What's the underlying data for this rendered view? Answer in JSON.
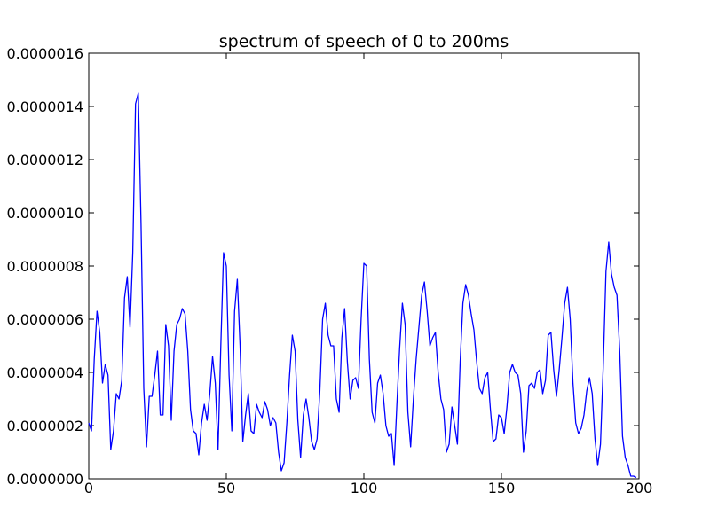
{
  "chart_data": {
    "type": "line",
    "title": "spectrum of speech of 0 to 200ms",
    "xlabel": "",
    "ylabel": "",
    "xlim": [
      0,
      200
    ],
    "ylim": [
      0,
      1.6e-06
    ],
    "grid": false,
    "x_ticks": [
      {
        "value": 0,
        "label": "0"
      },
      {
        "value": 50,
        "label": "50"
      },
      {
        "value": 100,
        "label": "100"
      },
      {
        "value": 150,
        "label": "150"
      },
      {
        "value": 200,
        "label": "200"
      }
    ],
    "y_ticks": [
      {
        "value": 0,
        "label": "0.0000000"
      },
      {
        "value": 2e-07,
        "label": "0.0000002"
      },
      {
        "value": 4e-07,
        "label": "0.0000004"
      },
      {
        "value": 6e-07,
        "label": "0.0000006"
      },
      {
        "value": 8e-07,
        "label": "0.0000008"
      },
      {
        "value": 1e-06,
        "label": "0.0000010"
      },
      {
        "value": 1.2e-06,
        "label": "0.0000012"
      },
      {
        "value": 1.4e-06,
        "label": "0.0000014"
      },
      {
        "value": 1.6e-06,
        "label": "0.0000016"
      }
    ],
    "series": [
      {
        "color": "#0000ff",
        "y_scale": 1e-07,
        "start_x": 0,
        "step_x": 1,
        "values": [
          2.1,
          1.8,
          4.5,
          6.3,
          5.5,
          3.6,
          4.3,
          3.9,
          1.1,
          1.8,
          3.2,
          3.0,
          3.7,
          6.8,
          7.6,
          5.7,
          8.5,
          14.1,
          14.5,
          9.6,
          3.4,
          1.2,
          3.1,
          3.1,
          3.9,
          4.8,
          2.4,
          2.4,
          5.8,
          5.0,
          2.2,
          4.8,
          5.8,
          6.0,
          6.4,
          6.2,
          4.8,
          2.6,
          1.8,
          1.7,
          0.9,
          2.1,
          2.8,
          2.2,
          3.2,
          4.6,
          3.6,
          1.1,
          5.0,
          8.5,
          8.0,
          3.9,
          1.8,
          6.3,
          7.5,
          5.0,
          1.4,
          2.4,
          3.2,
          1.8,
          1.7,
          2.8,
          2.5,
          2.3,
          2.9,
          2.6,
          2.0,
          2.3,
          2.1,
          1.0,
          0.3,
          0.6,
          2.1,
          3.9,
          5.4,
          4.8,
          2.2,
          0.8,
          2.4,
          3.0,
          2.3,
          1.4,
          1.1,
          1.5,
          3.3,
          6.0,
          6.6,
          5.4,
          5.0,
          5.0,
          3.0,
          2.5,
          5.3,
          6.4,
          4.4,
          3.0,
          3.7,
          3.8,
          3.4,
          6.0,
          8.1,
          8.0,
          4.5,
          2.5,
          2.1,
          3.6,
          3.9,
          3.2,
          2.0,
          1.6,
          1.7,
          0.5,
          2.8,
          4.9,
          6.6,
          5.8,
          2.5,
          1.2,
          3.0,
          4.5,
          5.7,
          6.9,
          7.4,
          6.3,
          5.0,
          5.3,
          5.5,
          4.0,
          3.0,
          2.6,
          1.0,
          1.3,
          2.7,
          2.0,
          1.3,
          4.4,
          6.6,
          7.3,
          6.9,
          6.2,
          5.6,
          4.4,
          3.4,
          3.2,
          3.8,
          4.0,
          2.6,
          1.4,
          1.5,
          2.4,
          2.3,
          1.7,
          2.7,
          4.0,
          4.3,
          4.0,
          3.9,
          3.2,
          1.0,
          1.8,
          3.5,
          3.6,
          3.4,
          4.0,
          4.1,
          3.2,
          3.7,
          5.4,
          5.5,
          4.1,
          3.1,
          4.1,
          5.3,
          6.6,
          7.2,
          6.0,
          3.6,
          2.1,
          1.7,
          1.9,
          2.4,
          3.3,
          3.8,
          3.2,
          1.5,
          0.5,
          1.3,
          4.2,
          7.8,
          8.9,
          7.7,
          7.2,
          6.9,
          4.8,
          1.6,
          0.8,
          0.5,
          0.1,
          0.1,
          0.05
        ]
      }
    ]
  }
}
